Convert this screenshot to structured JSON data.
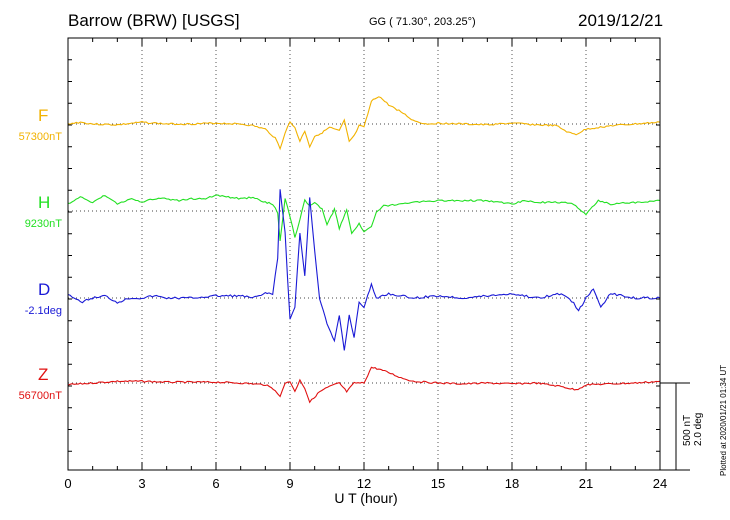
{
  "header": {
    "station": "Barrow (BRW)  [USGS]",
    "coords": "GG ( 71.30°, 203.25°)",
    "date": "2019/12/21"
  },
  "footer": {
    "plotted": "Plotted at 2020/01/21 01:34 UT"
  },
  "chart_data": {
    "type": "line",
    "xlabel": "U T (hour)",
    "xlim": [
      0,
      24
    ],
    "xticks": [
      "0",
      "3",
      "6",
      "9",
      "12",
      "15",
      "18",
      "21",
      "24"
    ],
    "scale": {
      "nt": "500 nT",
      "deg": "2.0 deg"
    },
    "grid": "dotted",
    "series": [
      {
        "name": "F",
        "baseline_label": "57300nT",
        "color": "#f2b200",
        "unit": "nT",
        "base": 57300,
        "points": [
          [
            0,
            57300
          ],
          [
            0.5,
            57310
          ],
          [
            1,
            57300
          ],
          [
            2,
            57295
          ],
          [
            3,
            57310
          ],
          [
            4,
            57300
          ],
          [
            5,
            57300
          ],
          [
            6,
            57305
          ],
          [
            7,
            57300
          ],
          [
            7.5,
            57290
          ],
          [
            8,
            57270
          ],
          [
            8.4,
            57220
          ],
          [
            8.6,
            57160
          ],
          [
            8.8,
            57250
          ],
          [
            9.0,
            57310
          ],
          [
            9.2,
            57280
          ],
          [
            9.4,
            57200
          ],
          [
            9.6,
            57260
          ],
          [
            9.8,
            57170
          ],
          [
            10.0,
            57230
          ],
          [
            10.3,
            57250
          ],
          [
            10.6,
            57280
          ],
          [
            11.0,
            57260
          ],
          [
            11.2,
            57320
          ],
          [
            11.4,
            57200
          ],
          [
            11.6,
            57230
          ],
          [
            11.8,
            57290
          ],
          [
            12.0,
            57280
          ],
          [
            12.3,
            57430
          ],
          [
            12.6,
            57460
          ],
          [
            13.0,
            57410
          ],
          [
            13.5,
            57370
          ],
          [
            14,
            57320
          ],
          [
            14.5,
            57300
          ],
          [
            15,
            57305
          ],
          [
            16,
            57300
          ],
          [
            17,
            57295
          ],
          [
            18,
            57305
          ],
          [
            19,
            57295
          ],
          [
            19.8,
            57290
          ],
          [
            20.3,
            57250
          ],
          [
            20.6,
            57240
          ],
          [
            21,
            57270
          ],
          [
            21.5,
            57280
          ],
          [
            22,
            57290
          ],
          [
            23,
            57300
          ],
          [
            24,
            57310
          ]
        ]
      },
      {
        "name": "H",
        "baseline_label": "9230nT",
        "color": "#22e022",
        "unit": "nT",
        "base": 9230,
        "points": [
          [
            0,
            9270
          ],
          [
            0.5,
            9310
          ],
          [
            1,
            9280
          ],
          [
            1.5,
            9320
          ],
          [
            2,
            9270
          ],
          [
            2.5,
            9300
          ],
          [
            3,
            9280
          ],
          [
            3.5,
            9300
          ],
          [
            4,
            9300
          ],
          [
            4.5,
            9290
          ],
          [
            5,
            9300
          ],
          [
            5.5,
            9300
          ],
          [
            6,
            9320
          ],
          [
            7,
            9300
          ],
          [
            7.5,
            9310
          ],
          [
            8,
            9280
          ],
          [
            8.3,
            9270
          ],
          [
            8.5,
            9220
          ],
          [
            8.6,
            9060
          ],
          [
            8.8,
            9300
          ],
          [
            9.0,
            9200
          ],
          [
            9.2,
            9080
          ],
          [
            9.4,
            9180
          ],
          [
            9.6,
            9290
          ],
          [
            9.8,
            9260
          ],
          [
            10.0,
            9280
          ],
          [
            10.3,
            9240
          ],
          [
            10.5,
            9150
          ],
          [
            10.8,
            9240
          ],
          [
            11.0,
            9130
          ],
          [
            11.3,
            9240
          ],
          [
            11.5,
            9100
          ],
          [
            11.8,
            9160
          ],
          [
            12.0,
            9110
          ],
          [
            12.3,
            9140
          ],
          [
            12.5,
            9220
          ],
          [
            12.8,
            9260
          ],
          [
            13.5,
            9270
          ],
          [
            14,
            9280
          ],
          [
            15,
            9290
          ],
          [
            16,
            9290
          ],
          [
            17,
            9290
          ],
          [
            18,
            9270
          ],
          [
            18.5,
            9290
          ],
          [
            19,
            9280
          ],
          [
            20,
            9280
          ],
          [
            20.5,
            9270
          ],
          [
            21,
            9210
          ],
          [
            21.5,
            9290
          ],
          [
            22,
            9270
          ],
          [
            23,
            9280
          ],
          [
            24,
            9290
          ]
        ]
      },
      {
        "name": "D",
        "baseline_label": "-2.1deg",
        "color": "#1a1ad6",
        "unit": "deg",
        "base": -2.1,
        "points": [
          [
            0,
            -2.0
          ],
          [
            0.5,
            -2.2
          ],
          [
            1,
            -2.1
          ],
          [
            1.5,
            -2.05
          ],
          [
            2,
            -2.2
          ],
          [
            2.5,
            -2.1
          ],
          [
            3,
            -2.1
          ],
          [
            3.5,
            -2.05
          ],
          [
            4,
            -2.1
          ],
          [
            5,
            -2.1
          ],
          [
            6,
            -2.05
          ],
          [
            7,
            -2.05
          ],
          [
            7.5,
            -2.1
          ],
          [
            8,
            -2.0
          ],
          [
            8.3,
            -2.0
          ],
          [
            8.5,
            -1.2
          ],
          [
            8.6,
            0.4
          ],
          [
            8.8,
            -0.6
          ],
          [
            9.0,
            -2.6
          ],
          [
            9.2,
            -2.3
          ],
          [
            9.4,
            -0.6
          ],
          [
            9.6,
            -1.6
          ],
          [
            9.8,
            0.2
          ],
          [
            10.0,
            -1.0
          ],
          [
            10.2,
            -2.1
          ],
          [
            10.5,
            -2.7
          ],
          [
            10.8,
            -3.1
          ],
          [
            11.0,
            -2.5
          ],
          [
            11.2,
            -3.3
          ],
          [
            11.4,
            -2.5
          ],
          [
            11.6,
            -3.0
          ],
          [
            11.8,
            -2.2
          ],
          [
            12.0,
            -2.3
          ],
          [
            12.3,
            -1.8
          ],
          [
            12.5,
            -2.1
          ],
          [
            13,
            -2.0
          ],
          [
            14,
            -2.1
          ],
          [
            15,
            -2.05
          ],
          [
            16,
            -2.1
          ],
          [
            17,
            -2.05
          ],
          [
            18,
            -2.0
          ],
          [
            19,
            -2.1
          ],
          [
            20,
            -2.0
          ],
          [
            20.5,
            -2.2
          ],
          [
            20.7,
            -2.4
          ],
          [
            21,
            -2.1
          ],
          [
            21.3,
            -1.9
          ],
          [
            21.6,
            -2.3
          ],
          [
            22,
            -2.0
          ],
          [
            23,
            -2.1
          ],
          [
            24,
            -2.1
          ]
        ]
      },
      {
        "name": "Z",
        "baseline_label": "56700nT",
        "color": "#e01010",
        "unit": "nT",
        "base": 56700,
        "points": [
          [
            0,
            56690
          ],
          [
            1,
            56700
          ],
          [
            2,
            56710
          ],
          [
            3,
            56710
          ],
          [
            4,
            56705
          ],
          [
            5,
            56705
          ],
          [
            6,
            56705
          ],
          [
            7,
            56700
          ],
          [
            8,
            56690
          ],
          [
            8.4,
            56660
          ],
          [
            8.6,
            56620
          ],
          [
            8.8,
            56700
          ],
          [
            9.0,
            56710
          ],
          [
            9.2,
            56650
          ],
          [
            9.4,
            56720
          ],
          [
            9.6,
            56670
          ],
          [
            9.8,
            56590
          ],
          [
            10.2,
            56650
          ],
          [
            10.6,
            56680
          ],
          [
            11,
            56700
          ],
          [
            11.3,
            56650
          ],
          [
            11.6,
            56700
          ],
          [
            12,
            56700
          ],
          [
            12.3,
            56790
          ],
          [
            12.6,
            56780
          ],
          [
            13,
            56760
          ],
          [
            13.5,
            56730
          ],
          [
            14,
            56710
          ],
          [
            15,
            56700
          ],
          [
            16,
            56695
          ],
          [
            17,
            56700
          ],
          [
            18,
            56695
          ],
          [
            19,
            56700
          ],
          [
            20,
            56680
          ],
          [
            20.3,
            56670
          ],
          [
            20.6,
            56660
          ],
          [
            21,
            56690
          ],
          [
            22,
            56695
          ],
          [
            23,
            56700
          ],
          [
            24,
            56710
          ]
        ]
      }
    ]
  }
}
